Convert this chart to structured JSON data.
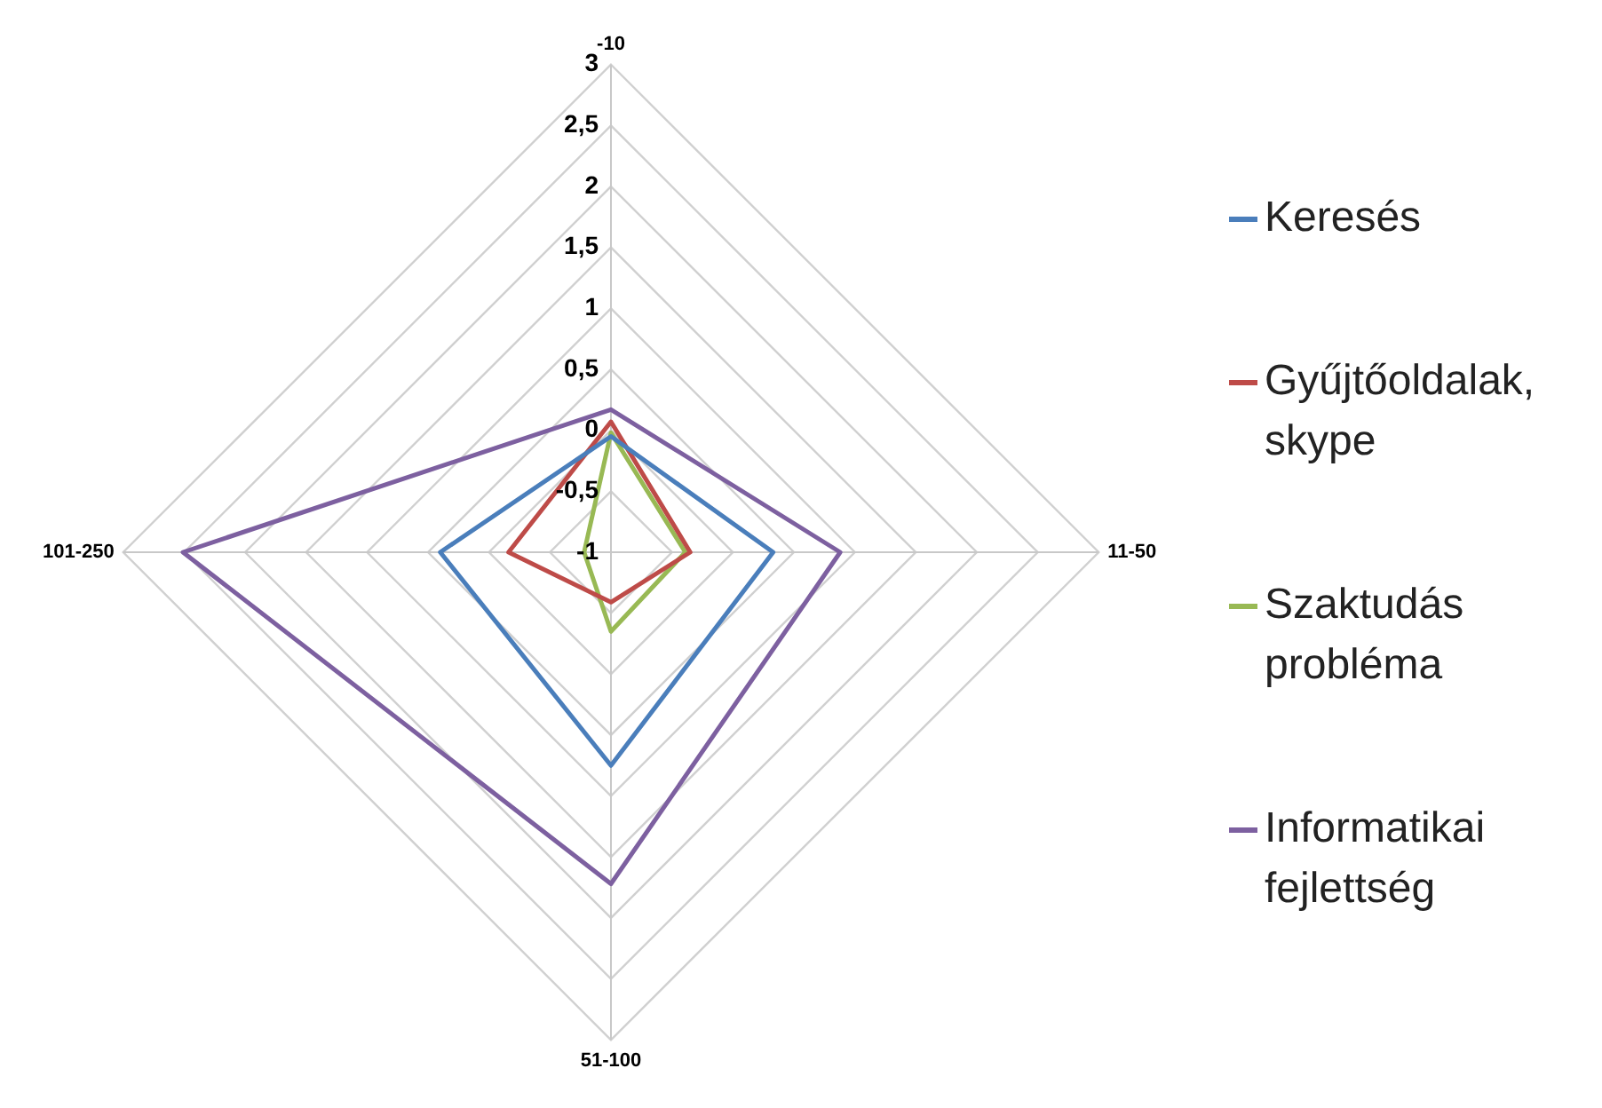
{
  "chart_data": {
    "type": "radar",
    "categories": [
      "-10",
      "11-50",
      "51-100",
      "101-250"
    ],
    "series": [
      {
        "name": "Keresés",
        "color": "#4a7ebb",
        "values": [
          -0.05,
          0.33,
          0.75,
          0.4
        ]
      },
      {
        "name": "Gyűjtőoldalak, skype",
        "color": "#be4b48",
        "values": [
          0.07,
          -0.35,
          -0.59,
          -0.16
        ]
      },
      {
        "name": "Szaktudás probléma",
        "color": "#98b954",
        "values": [
          -0.02,
          -0.39,
          -0.35,
          -0.78
        ]
      },
      {
        "name": "Informatikai fejlettség",
        "color": "#7d60a0",
        "values": [
          0.17,
          0.88,
          1.72,
          2.51
        ]
      }
    ],
    "ylim": [
      -1,
      3
    ],
    "yticks": [
      -1,
      {
        "value": -0.5,
        "label": "-0,5"
      },
      0,
      {
        "value": 0.5,
        "label": "0,5"
      },
      1,
      {
        "value": 1.5,
        "label": "1,5"
      },
      2,
      {
        "value": 2.5,
        "label": "2,5"
      },
      3
    ],
    "grid": true,
    "legend": "right",
    "marker": "none",
    "line_style": "solid"
  }
}
